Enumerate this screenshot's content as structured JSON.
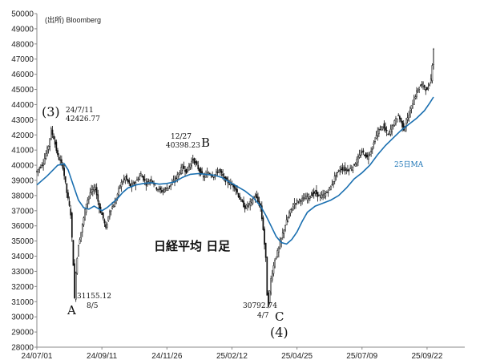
{
  "chart_data": {
    "type": "candlestick",
    "title": "日経平均 日足",
    "source": "(出所) Bloomberg",
    "ylim": [
      28000,
      50000
    ],
    "yticks": [
      28000,
      29000,
      30000,
      31000,
      32000,
      33000,
      34000,
      35000,
      36000,
      37000,
      38000,
      39000,
      40000,
      41000,
      42000,
      43000,
      44000,
      45000,
      46000,
      47000,
      48000,
      49000,
      50000
    ],
    "xticks": [
      "24/07/01",
      "24/09/11",
      "24/11/26",
      "25/02/12",
      "25/04/25",
      "25/07/09",
      "25/09/22"
    ],
    "xtick_index": [
      0,
      50,
      100,
      150,
      200,
      250,
      300
    ],
    "n_days": 330,
    "ma_label": "25日MA",
    "price_series": [
      [
        0,
        39600
      ],
      [
        5,
        40200
      ],
      [
        9,
        41300
      ],
      [
        11,
        42300
      ],
      [
        13,
        41800
      ],
      [
        16,
        40600
      ],
      [
        20,
        39900
      ],
      [
        23,
        38200
      ],
      [
        26,
        36800
      ],
      [
        28,
        33500
      ],
      [
        29,
        31158
      ],
      [
        30,
        33000
      ],
      [
        32,
        34800
      ],
      [
        35,
        36000
      ],
      [
        38,
        37500
      ],
      [
        41,
        38200
      ],
      [
        45,
        38500
      ],
      [
        48,
        37200
      ],
      [
        51,
        36500
      ],
      [
        53,
        35800
      ],
      [
        56,
        37000
      ],
      [
        60,
        37500
      ],
      [
        64,
        38700
      ],
      [
        68,
        39200
      ],
      [
        72,
        38600
      ],
      [
        76,
        38900
      ],
      [
        80,
        39400
      ],
      [
        84,
        38800
      ],
      [
        88,
        39100
      ],
      [
        92,
        38500
      ],
      [
        96,
        38300
      ],
      [
        100,
        38500
      ],
      [
        104,
        38800
      ],
      [
        108,
        39300
      ],
      [
        112,
        39900
      ],
      [
        115,
        39600
      ],
      [
        118,
        40100
      ],
      [
        120,
        40398
      ],
      [
        124,
        39800
      ],
      [
        128,
        39200
      ],
      [
        132,
        39500
      ],
      [
        136,
        39300
      ],
      [
        140,
        39700
      ],
      [
        144,
        39100
      ],
      [
        148,
        38800
      ],
      [
        152,
        38600
      ],
      [
        156,
        37800
      ],
      [
        160,
        37200
      ],
      [
        164,
        37500
      ],
      [
        168,
        38000
      ],
      [
        172,
        37200
      ],
      [
        174,
        35800
      ],
      [
        176,
        33800
      ],
      [
        177,
        31500
      ],
      [
        178,
        30793
      ],
      [
        180,
        32500
      ],
      [
        183,
        33800
      ],
      [
        186,
        34500
      ],
      [
        190,
        35800
      ],
      [
        194,
        36800
      ],
      [
        198,
        37500
      ],
      [
        202,
        37700
      ],
      [
        206,
        37800
      ],
      [
        210,
        38000
      ],
      [
        214,
        38200
      ],
      [
        218,
        37900
      ],
      [
        222,
        38100
      ],
      [
        226,
        38600
      ],
      [
        230,
        39400
      ],
      [
        234,
        39800
      ],
      [
        238,
        39700
      ],
      [
        242,
        39800
      ],
      [
        246,
        40300
      ],
      [
        250,
        40900
      ],
      [
        254,
        40500
      ],
      [
        258,
        41200
      ],
      [
        262,
        42200
      ],
      [
        266,
        42600
      ],
      [
        270,
        42000
      ],
      [
        274,
        42700
      ],
      [
        278,
        43300
      ],
      [
        282,
        42400
      ],
      [
        286,
        43300
      ],
      [
        290,
        44400
      ],
      [
        294,
        45200
      ],
      [
        297,
        45300
      ],
      [
        300,
        44900
      ],
      [
        303,
        45700
      ],
      [
        305,
        47700
      ]
    ],
    "ma_series": [
      [
        0,
        38700
      ],
      [
        8,
        39300
      ],
      [
        16,
        40000
      ],
      [
        21,
        40100
      ],
      [
        24,
        39700
      ],
      [
        28,
        38700
      ],
      [
        32,
        37700
      ],
      [
        36,
        37200
      ],
      [
        40,
        37100
      ],
      [
        44,
        37300
      ],
      [
        50,
        37000
      ],
      [
        54,
        37200
      ],
      [
        58,
        37500
      ],
      [
        62,
        37800
      ],
      [
        66,
        38200
      ],
      [
        70,
        38500
      ],
      [
        76,
        38700
      ],
      [
        82,
        38800
      ],
      [
        88,
        38850
      ],
      [
        94,
        38750
      ],
      [
        100,
        38800
      ],
      [
        106,
        38900
      ],
      [
        112,
        39200
      ],
      [
        118,
        39400
      ],
      [
        124,
        39450
      ],
      [
        130,
        39400
      ],
      [
        136,
        39350
      ],
      [
        142,
        39200
      ],
      [
        148,
        38900
      ],
      [
        154,
        38600
      ],
      [
        160,
        38300
      ],
      [
        166,
        37900
      ],
      [
        172,
        37300
      ],
      [
        176,
        36700
      ],
      [
        180,
        36000
      ],
      [
        184,
        35300
      ],
      [
        188,
        34900
      ],
      [
        192,
        34800
      ],
      [
        196,
        35100
      ],
      [
        200,
        35600
      ],
      [
        204,
        36300
      ],
      [
        208,
        36900
      ],
      [
        214,
        37300
      ],
      [
        220,
        37500
      ],
      [
        226,
        37700
      ],
      [
        232,
        38000
      ],
      [
        238,
        38500
      ],
      [
        244,
        39100
      ],
      [
        250,
        39500
      ],
      [
        256,
        40000
      ],
      [
        262,
        40700
      ],
      [
        268,
        41300
      ],
      [
        274,
        41800
      ],
      [
        280,
        42300
      ],
      [
        286,
        42700
      ],
      [
        292,
        43100
      ],
      [
        298,
        43600
      ],
      [
        302,
        44100
      ],
      [
        305,
        44500
      ]
    ],
    "annotations": [
      {
        "id": "3",
        "label": "(3)",
        "date": "24/7/11",
        "value": "42426.77"
      },
      {
        "id": "A",
        "label": "A",
        "value": "31155.12",
        "date": "8/5"
      },
      {
        "id": "B",
        "label": "B",
        "date": "12/27",
        "value": "40398.23"
      },
      {
        "id": "C",
        "label": "C",
        "value": "30792.74",
        "date": "4/7"
      },
      {
        "id": "4",
        "label": "(4)"
      }
    ]
  }
}
